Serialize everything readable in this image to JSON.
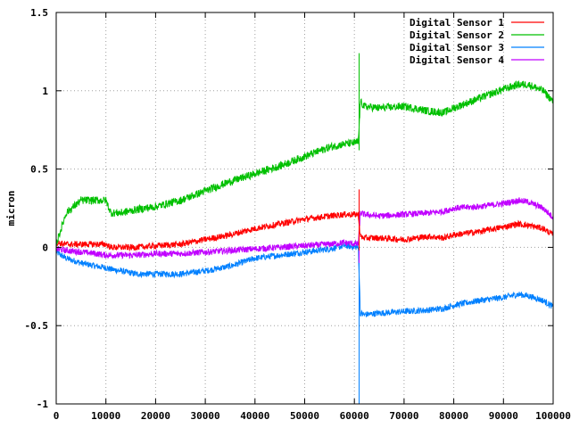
{
  "chart_data": {
    "type": "line",
    "title": "",
    "xlabel": "",
    "ylabel": "micron",
    "xlim": [
      0,
      100000
    ],
    "ylim": [
      -1,
      1.5
    ],
    "x_ticks": [
      0,
      10000,
      20000,
      30000,
      40000,
      50000,
      60000,
      70000,
      80000,
      90000,
      100000
    ],
    "y_ticks": [
      -1,
      -0.5,
      0,
      0.5,
      1,
      1.5
    ],
    "x_tick_labels": [
      "0",
      "10000",
      "20000",
      "30000",
      "40000",
      "50000",
      "60000",
      "70000",
      "80000",
      "90000",
      "100000"
    ],
    "y_tick_labels": [
      "-1",
      "-0.5",
      "0",
      "0.5",
      "1",
      "1.5"
    ],
    "grid": true,
    "legend_position": "top-right",
    "x": [
      0,
      2000,
      5000,
      8000,
      10000,
      11000,
      13000,
      16000,
      20000,
      25000,
      30000,
      35000,
      40000,
      45000,
      50000,
      55000,
      58000,
      60800,
      61200,
      62000,
      65000,
      70000,
      75000,
      78000,
      80000,
      85000,
      90000,
      93000,
      95000,
      98000,
      100000
    ],
    "series": [
      {
        "name": "Digital Sensor 1",
        "color": "#ff0000",
        "noise": 0.02,
        "values": [
          0.03,
          0.02,
          0.02,
          0.02,
          0.02,
          0.0,
          0.0,
          0.0,
          0.01,
          0.02,
          0.05,
          0.08,
          0.12,
          0.15,
          0.18,
          0.2,
          0.21,
          0.21,
          0.07,
          0.06,
          0.06,
          0.05,
          0.07,
          0.06,
          0.08,
          0.1,
          0.13,
          0.15,
          0.14,
          0.12,
          0.08
        ]
      },
      {
        "name": "Digital Sensor 2",
        "color": "#00c000",
        "noise": 0.025,
        "values": [
          0.02,
          0.22,
          0.3,
          0.3,
          0.3,
          0.22,
          0.22,
          0.24,
          0.26,
          0.3,
          0.36,
          0.42,
          0.47,
          0.52,
          0.58,
          0.64,
          0.66,
          0.67,
          0.93,
          0.9,
          0.89,
          0.9,
          0.87,
          0.86,
          0.89,
          0.95,
          1.01,
          1.04,
          1.04,
          1.0,
          0.93
        ]
      },
      {
        "name": "Digital Sensor 3",
        "color": "#0080ff",
        "noise": 0.02,
        "values": [
          -0.03,
          -0.07,
          -0.1,
          -0.12,
          -0.13,
          -0.14,
          -0.15,
          -0.17,
          -0.17,
          -0.17,
          -0.15,
          -0.12,
          -0.07,
          -0.05,
          -0.03,
          -0.01,
          0.01,
          0.0,
          -0.42,
          -0.43,
          -0.42,
          -0.41,
          -0.4,
          -0.39,
          -0.37,
          -0.34,
          -0.32,
          -0.3,
          -0.31,
          -0.34,
          -0.38
        ]
      },
      {
        "name": "Digital Sensor 4",
        "color": "#c000ff",
        "noise": 0.02,
        "values": [
          -0.01,
          -0.02,
          -0.03,
          -0.04,
          -0.05,
          -0.05,
          -0.05,
          -0.05,
          -0.04,
          -0.04,
          -0.03,
          -0.02,
          -0.01,
          0.0,
          0.01,
          0.02,
          0.03,
          0.02,
          0.22,
          0.21,
          0.2,
          0.21,
          0.22,
          0.23,
          0.25,
          0.26,
          0.28,
          0.3,
          0.29,
          0.25,
          0.19
        ]
      }
    ]
  }
}
